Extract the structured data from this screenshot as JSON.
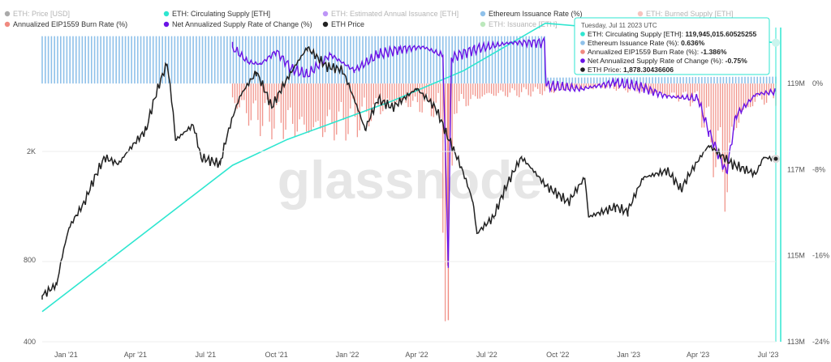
{
  "legend": [
    {
      "label": "ETH: Price [USD]",
      "color": "#555555",
      "active": false
    },
    {
      "label": "ETH: Circulating Supply [ETH]",
      "color": "#2ee6d0",
      "active": true
    },
    {
      "label": "ETH: Estimated Annual Issuance [ETH]",
      "color": "#7b2cf0",
      "active": false
    },
    {
      "label": "Ethereum Issuance Rate (%)",
      "color": "#8fc1ea",
      "active": true
    },
    {
      "label": "ETH: Burned Supply [ETH]",
      "color": "#f08a80",
      "active": false
    },
    {
      "label": "Annualized EIP1559 Burn Rate (%)",
      "color": "#f08a80",
      "active": true
    },
    {
      "label": "Net Annualized Supply Rate of Change (%)",
      "color": "#6a13e6",
      "active": true
    },
    {
      "label": "ETH Price",
      "color": "#222222",
      "active": true
    },
    {
      "label": "ETH: Issuance [ETH]",
      "color": "#79d27a",
      "active": false
    }
  ],
  "tooltip": {
    "title": "Tuesday, Jul 11 2023 UTC",
    "lines": [
      {
        "label": "ETH: Circulating Supply [ETH]:",
        "value": "119,945,015.60525255",
        "color": "#2ee6d0"
      },
      {
        "label": "Ethereum Issuance Rate (%):",
        "value": "0.636%",
        "color": "#8fc1ea"
      },
      {
        "label": "Annualized EIP1559 Burn Rate (%):",
        "value": "-1.386%",
        "color": "#f08a80"
      },
      {
        "label": "Net Annualized Supply Rate of Change (%):",
        "value": "-0.75%",
        "color": "#6a13e6"
      },
      {
        "label": "ETH Price:",
        "value": "1,878.30436606",
        "color": "#222222"
      }
    ]
  },
  "watermark": "glassnode",
  "chart_data": {
    "type": "line",
    "x_ticks": [
      "Jan '21",
      "Apr '21",
      "Jul '21",
      "Oct '21",
      "Jan '22",
      "Apr '22",
      "Jul '22",
      "Oct '22",
      "Jan '23",
      "Apr '23",
      "Jul '23"
    ],
    "y_left": {
      "scale": "log",
      "ticks": [
        "2K",
        "800",
        "400"
      ],
      "values": [
        2000,
        800,
        400
      ]
    },
    "y_supply": {
      "ticks": [
        "119M",
        "117M",
        "115M",
        "113M"
      ],
      "values": [
        119,
        117,
        115,
        113
      ],
      "range": [
        113,
        120
      ]
    },
    "y_rate": {
      "ticks": [
        "0%",
        "-8%",
        "-16%",
        "-24%"
      ],
      "values": [
        0,
        -8,
        -16,
        -24
      ],
      "range": [
        -24,
        4
      ]
    },
    "issuance_rate": {
      "name": "Ethereum Issuance Rate (%)",
      "points": [
        [
          "2020-12-01",
          4.4
        ],
        [
          "2022-09-15",
          4.4
        ],
        [
          "2022-09-16",
          0.55
        ],
        [
          "2023-07-11",
          0.64
        ]
      ]
    },
    "burn_rate": {
      "name": "Annualized EIP1559 Burn Rate (%)",
      "points": [
        [
          "2021-08-05",
          -1.5
        ],
        [
          "2021-09-01",
          -3.0
        ],
        [
          "2021-10-15",
          -3.5
        ],
        [
          "2021-11-15",
          -4.2
        ],
        [
          "2022-01-15",
          -3.2
        ],
        [
          "2022-03-01",
          -1.6
        ],
        [
          "2022-05-01",
          -2.2
        ],
        [
          "2022-05-12",
          -22
        ],
        [
          "2022-05-20",
          -2.0
        ],
        [
          "2022-07-01",
          -1.0
        ],
        [
          "2022-09-15",
          -0.7
        ],
        [
          "2022-12-01",
          -0.3
        ],
        [
          "2023-02-01",
          -0.8
        ],
        [
          "2023-04-01",
          -1.5
        ],
        [
          "2023-04-15",
          -4.5
        ],
        [
          "2023-05-08",
          -8.8
        ],
        [
          "2023-05-20",
          -3.5
        ],
        [
          "2023-06-15",
          -1.5
        ],
        [
          "2023-07-11",
          -1.39
        ]
      ]
    },
    "net_supply_rate": {
      "name": "Net Annualized Supply Rate of Change (%)",
      "points": [
        [
          "2021-08-05",
          3.4
        ],
        [
          "2021-08-25",
          2.0
        ],
        [
          "2021-09-10",
          1.8
        ],
        [
          "2021-10-01",
          3.0
        ],
        [
          "2021-10-20",
          1.4
        ],
        [
          "2021-11-10",
          0.8
        ],
        [
          "2021-12-10",
          2.7
        ],
        [
          "2022-01-10",
          1.2
        ],
        [
          "2022-02-10",
          2.7
        ],
        [
          "2022-03-10",
          3.2
        ],
        [
          "2022-04-10",
          3.4
        ],
        [
          "2022-05-05",
          2.6
        ],
        [
          "2022-05-12",
          -16.8
        ],
        [
          "2022-05-16",
          2.4
        ],
        [
          "2022-06-15",
          3.2
        ],
        [
          "2022-08-01",
          3.8
        ],
        [
          "2022-09-14",
          3.8
        ],
        [
          "2022-09-16",
          -0.2
        ],
        [
          "2022-11-01",
          -0.5
        ],
        [
          "2022-12-15",
          0.1
        ],
        [
          "2023-01-20",
          -0.4
        ],
        [
          "2023-02-20",
          -1.2
        ],
        [
          "2023-04-01",
          -1.4
        ],
        [
          "2023-04-15",
          -4.5
        ],
        [
          "2023-05-08",
          -8.3
        ],
        [
          "2023-05-20",
          -3.0
        ],
        [
          "2023-06-15",
          -1.0
        ],
        [
          "2023-07-11",
          -0.75
        ]
      ]
    },
    "circulating_supply": {
      "name": "ETH: Circulating Supply [ETH]",
      "unit": "M",
      "points": [
        [
          "2020-12-01",
          113.7
        ],
        [
          "2021-08-05",
          117.1
        ],
        [
          "2021-10-15",
          117.7
        ],
        [
          "2021-12-15",
          118.1
        ],
        [
          "2022-03-01",
          118.6
        ],
        [
          "2022-06-01",
          119.3
        ],
        [
          "2022-09-15",
          120.4
        ],
        [
          "2023-07-11",
          119.95
        ]
      ]
    },
    "eth_price": {
      "name": "ETH Price",
      "unit": "USD",
      "points": [
        [
          "2020-12-01",
          590
        ],
        [
          "2020-12-20",
          650
        ],
        [
          "2021-01-05",
          1050
        ],
        [
          "2021-01-25",
          1300
        ],
        [
          "2021-02-20",
          1900
        ],
        [
          "2021-03-10",
          1800
        ],
        [
          "2021-04-15",
          2400
        ],
        [
          "2021-05-12",
          4200
        ],
        [
          "2021-05-23",
          2200
        ],
        [
          "2021-06-15",
          2500
        ],
        [
          "2021-06-25",
          1900
        ],
        [
          "2021-07-20",
          1800
        ],
        [
          "2021-08-15",
          3200
        ],
        [
          "2021-09-05",
          3900
        ],
        [
          "2021-09-25",
          2900
        ],
        [
          "2021-10-20",
          3900
        ],
        [
          "2021-11-10",
          4800
        ],
        [
          "2021-12-05",
          4100
        ],
        [
          "2021-12-25",
          4000
        ],
        [
          "2022-01-10",
          3100
        ],
        [
          "2022-01-24",
          2400
        ],
        [
          "2022-02-10",
          3100
        ],
        [
          "2022-03-01",
          2900
        ],
        [
          "2022-04-01",
          3400
        ],
        [
          "2022-04-25",
          2900
        ],
        [
          "2022-05-10",
          2300
        ],
        [
          "2022-05-20",
          2000
        ],
        [
          "2022-06-13",
          1300
        ],
        [
          "2022-06-18",
          1000
        ],
        [
          "2022-07-10",
          1150
        ],
        [
          "2022-08-15",
          1900
        ],
        [
          "2022-09-15",
          1500
        ],
        [
          "2022-10-15",
          1300
        ],
        [
          "2022-11-05",
          1600
        ],
        [
          "2022-11-10",
          1150
        ],
        [
          "2022-12-15",
          1250
        ],
        [
          "2022-12-31",
          1200
        ],
        [
          "2023-01-20",
          1600
        ],
        [
          "2023-02-20",
          1700
        ],
        [
          "2023-03-10",
          1450
        ],
        [
          "2023-04-15",
          2100
        ],
        [
          "2023-05-15",
          1800
        ],
        [
          "2023-06-15",
          1650
        ],
        [
          "2023-06-25",
          1900
        ],
        [
          "2023-07-11",
          1878.3
        ]
      ]
    }
  }
}
